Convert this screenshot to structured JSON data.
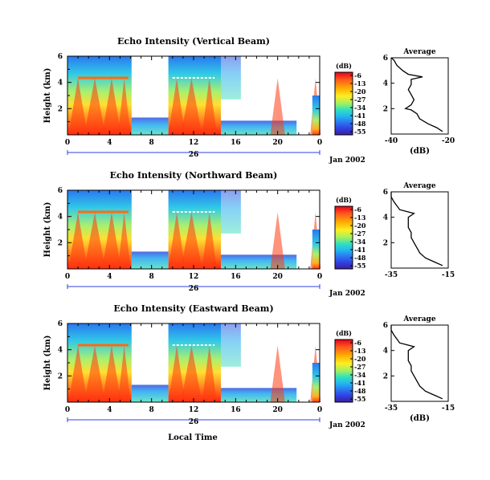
{
  "figure": {
    "xlabel": "Local Time",
    "date_label": "Jan 2002"
  },
  "chart_data": [
    {
      "type": "heatmap",
      "title": "Echo Intensity (Vertical Beam)",
      "ylabel": "Height (km)",
      "x_ticks": [
        "0",
        "4",
        "8",
        "12",
        "16",
        "20",
        "0"
      ],
      "x_range": [
        0,
        24
      ],
      "day_label": "26",
      "y_ticks": [
        "2",
        "4",
        "6"
      ],
      "y_range": [
        0,
        6
      ],
      "colorbar": {
        "unit": "(dB)",
        "ticks": [
          "-6",
          "-13",
          "-20",
          "-27",
          "-34",
          "-41",
          "-48",
          "-55"
        ]
      },
      "profile": {
        "title": "Average",
        "xlabel": "(dB)",
        "x_ticks": [
          "-40",
          "-20"
        ],
        "x_range": [
          -40,
          -20
        ],
        "y_ticks": [
          "2",
          "4",
          "6"
        ],
        "heights": [
          0.2,
          0.5,
          0.8,
          1.2,
          1.6,
          1.9,
          2.0,
          2.3,
          2.7,
          3.1,
          3.5,
          3.9,
          4.3,
          4.5,
          4.7,
          5.0,
          5.4,
          5.8,
          6.0
        ],
        "values": [
          -22,
          -24,
          -27,
          -30,
          -31,
          -33,
          -35,
          -33,
          -32,
          -33,
          -34,
          -33,
          -33,
          -29,
          -34,
          -36,
          -38,
          -39,
          -40
        ]
      }
    },
    {
      "type": "heatmap",
      "title": "Echo Intensity (Northward Beam)",
      "ylabel": "Height (km)",
      "x_ticks": [
        "0",
        "4",
        "8",
        "12",
        "16",
        "20",
        "0"
      ],
      "x_range": [
        0,
        24
      ],
      "day_label": "26",
      "y_ticks": [
        "2",
        "4",
        "6"
      ],
      "y_range": [
        0,
        6
      ],
      "colorbar": {
        "unit": "(dB)",
        "ticks": [
          "-6",
          "-13",
          "-20",
          "-27",
          "-34",
          "-41",
          "-48",
          "-55"
        ]
      },
      "profile": {
        "title": "Average",
        "xlabel": "",
        "x_ticks": [
          "-35",
          "-15"
        ],
        "x_range": [
          -35,
          -15
        ],
        "y_ticks": [
          "2",
          "4",
          "6"
        ],
        "heights": [
          0.2,
          0.5,
          0.8,
          1.2,
          1.6,
          2.0,
          2.4,
          2.8,
          3.2,
          3.6,
          4.0,
          4.3,
          4.6,
          4.9,
          5.2,
          5.6,
          6.0
        ],
        "values": [
          -17,
          -20,
          -23,
          -25,
          -26,
          -27,
          -28,
          -28,
          -29,
          -29,
          -29,
          -27,
          -32,
          -33,
          -34,
          -35,
          -35
        ]
      }
    },
    {
      "type": "heatmap",
      "title": "Echo Intensity (Eastward Beam)",
      "ylabel": "Height (km)",
      "x_ticks": [
        "0",
        "4",
        "8",
        "12",
        "16",
        "20",
        "0"
      ],
      "x_range": [
        0,
        24
      ],
      "day_label": "26",
      "y_ticks": [
        "2",
        "4",
        "6"
      ],
      "y_range": [
        0,
        6
      ],
      "colorbar": {
        "unit": "(dB)",
        "ticks": [
          "-6",
          "-13",
          "-20",
          "-27",
          "-34",
          "-41",
          "-48",
          "-55"
        ]
      },
      "profile": {
        "title": "Average",
        "xlabel": "(dB)",
        "x_ticks": [
          "-35",
          "-15"
        ],
        "x_range": [
          -35,
          -15
        ],
        "y_ticks": [
          "2",
          "4",
          "6"
        ],
        "heights": [
          0.2,
          0.5,
          0.8,
          1.2,
          1.6,
          2.0,
          2.4,
          2.8,
          3.2,
          3.6,
          4.0,
          4.3,
          4.6,
          4.9,
          5.2,
          5.6,
          6.0
        ],
        "values": [
          -17,
          -20,
          -23,
          -25,
          -26,
          -27,
          -28,
          -28,
          -29,
          -29,
          -29,
          -27,
          -32,
          -33,
          -34,
          -35,
          -35
        ]
      }
    }
  ]
}
